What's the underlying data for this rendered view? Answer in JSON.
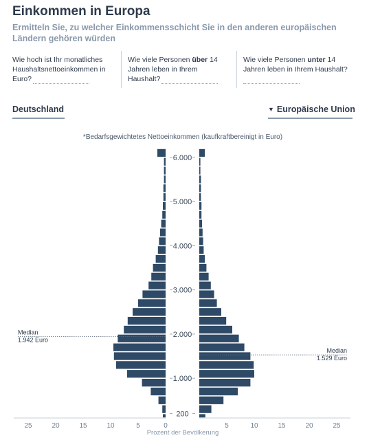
{
  "header": {
    "title": "Einkommen in Europa",
    "subtitle": "Ermitteln Sie, zu welcher Einkommensschicht Sie in den anderen europäischen Ländern gehören würden"
  },
  "questions": {
    "q1": "Wie hoch ist Ihr monatliches Haushaltsnettoeinkommen in Euro?",
    "q2_pre": "Wie viele Personen ",
    "q2_bold": "über",
    "q2_post": " 14 Jahren leben in Ihrem Haushalt?",
    "q3_pre": "Wie viele Personen ",
    "q3_bold": "unter",
    "q3_post": " 14 Jahren leben in Ihrem Haushalt?"
  },
  "selectors": {
    "left_country": "Deutschland",
    "right_region": "Europäische Union",
    "dropdown_icon": "caret-down-icon"
  },
  "colors": {
    "bar": "#2f4a66",
    "axis_text": "#6f7f91",
    "title": "#2f3b4c",
    "muted": "#8a99ab"
  },
  "chart_data": {
    "type": "bar",
    "subtype": "population-pyramid",
    "note": "*Bedarfsgewichtetes Nettoeinkommen (kaufkraftbereinigt in Euro)",
    "xlabel": "Prozent der Bevölkerung",
    "x_ticks": [
      25,
      20,
      15,
      10,
      5,
      0,
      5,
      10,
      15,
      20,
      25
    ],
    "xlim": [
      0,
      25
    ],
    "y_ticks": [
      {
        "value": 200,
        "label": "200"
      },
      {
        "value": 1000,
        "label": "1.000"
      },
      {
        "value": 2000,
        "label": "2.000"
      },
      {
        "value": 3000,
        "label": "3.000"
      },
      {
        "value": 4000,
        "label": "4.000"
      },
      {
        "value": 5000,
        "label": "5.000"
      },
      {
        "value": 6000,
        "label": "6.000"
      }
    ],
    "ylim": [
      100,
      6200
    ],
    "bins_upper_bounds": [
      200,
      400,
      600,
      800,
      1000,
      1200,
      1400,
      1600,
      1800,
      2000,
      2200,
      2400,
      2600,
      2800,
      3000,
      3200,
      3400,
      3600,
      3800,
      4000,
      4200,
      4400,
      4600,
      4800,
      5000,
      5200,
      5400,
      5600,
      5800,
      6000,
      6200
    ],
    "series": [
      {
        "name": "Deutschland",
        "side": "left",
        "values": [
          0.5,
          0.6,
          1.3,
          2.7,
          4.3,
          7.0,
          9.0,
          9.4,
          9.5,
          8.7,
          7.6,
          6.9,
          6.0,
          5.0,
          4.2,
          3.1,
          2.6,
          2.3,
          1.8,
          1.4,
          1.2,
          1.0,
          0.8,
          0.6,
          0.5,
          0.4,
          0.4,
          0.3,
          0.3,
          0.3,
          1.5
        ],
        "median": 1942,
        "median_label": "Median",
        "median_value_label": "1.942 Euro"
      },
      {
        "name": "Europäische Union",
        "side": "right",
        "values": [
          1.1,
          2.2,
          4.4,
          7.0,
          9.3,
          10.0,
          9.9,
          9.3,
          8.2,
          7.2,
          6.0,
          4.9,
          4.0,
          3.2,
          2.7,
          2.1,
          1.7,
          1.3,
          1.0,
          0.8,
          0.7,
          0.6,
          0.5,
          0.4,
          0.4,
          0.3,
          0.3,
          0.3,
          0.2,
          0.2,
          1.0
        ],
        "median": 1529,
        "median_label": "Median",
        "median_value_label": "1.529 Euro"
      }
    ]
  }
}
